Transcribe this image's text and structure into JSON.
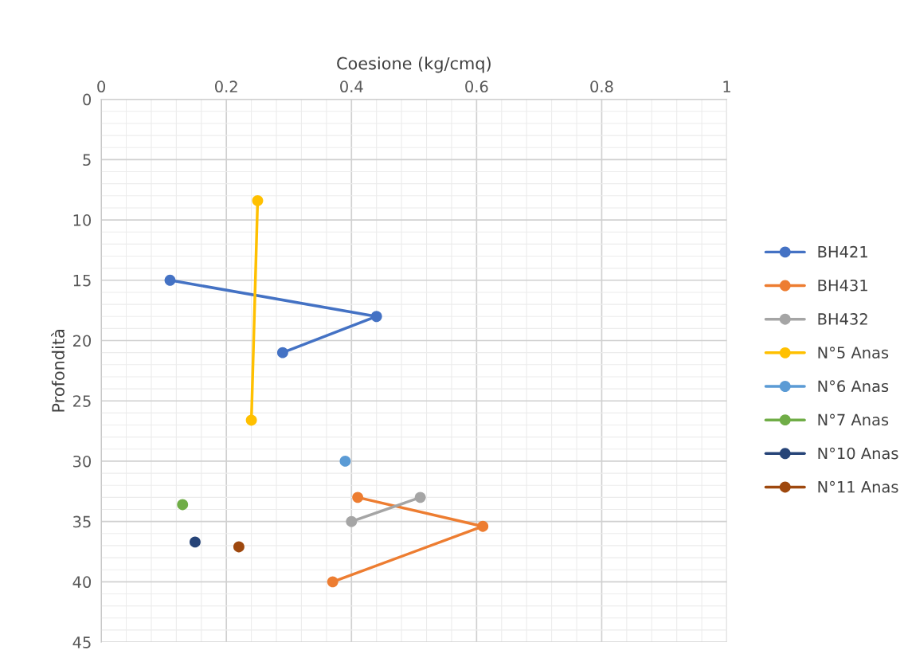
{
  "chart_data": {
    "type": "line",
    "xlabel": "Coesione (kg/cmq)",
    "ylabel": "Profondità",
    "xlim": [
      0,
      1
    ],
    "xticks": [
      0,
      0.2,
      0.4,
      0.6,
      0.8,
      1
    ],
    "ylim": [
      45,
      0
    ],
    "yticks": [
      0,
      5,
      10,
      15,
      20,
      25,
      30,
      35,
      40,
      45
    ],
    "grid": true,
    "legend": "right",
    "marker": "circle",
    "line_style": "solid",
    "series": [
      {
        "name": "BH421",
        "color": "#4472c4",
        "x": [
          0.11,
          0.44,
          0.29
        ],
        "values": [
          15,
          18,
          21
        ]
      },
      {
        "name": "BH431",
        "color": "#ed7d31",
        "x": [
          0.41,
          0.61,
          0.37
        ],
        "values": [
          33,
          35.4,
          40
        ]
      },
      {
        "name": "BH432",
        "color": "#a5a5a5",
        "x": [
          0.51,
          0.4
        ],
        "values": [
          33,
          35
        ]
      },
      {
        "name": "N°5 Anas",
        "color": "#ffc000",
        "x": [
          0.25,
          0.24
        ],
        "values": [
          8.4,
          26.6
        ]
      },
      {
        "name": "N°6 Anas",
        "color": "#5b9bd5",
        "x": [
          0.39
        ],
        "values": [
          30
        ]
      },
      {
        "name": "N°7 Anas",
        "color": "#70ad47",
        "x": [
          0.13
        ],
        "values": [
          33.6
        ]
      },
      {
        "name": "N°10 Anas",
        "color": "#264478",
        "x": [
          0.15
        ],
        "values": [
          36.7
        ]
      },
      {
        "name": "N°11 Anas",
        "color": "#9e480e",
        "x": [
          0.22
        ],
        "values": [
          37.1
        ]
      }
    ]
  }
}
